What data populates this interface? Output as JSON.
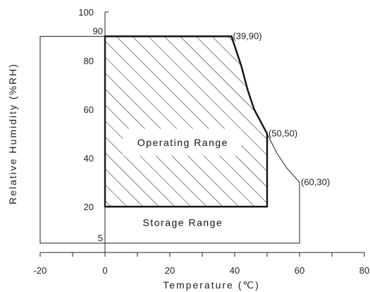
{
  "chart_data": {
    "type": "area",
    "xlabel": "Temperature (℃)",
    "ylabel": "Relative Humidity (%RH)",
    "xlim": [
      -20,
      80
    ],
    "ylim": [
      0,
      100
    ],
    "x_ticks": [
      -20,
      0,
      20,
      40,
      60,
      80
    ],
    "y_ticks": [
      20,
      40,
      60,
      80,
      100
    ],
    "y_extra_ticks": [
      5,
      90
    ],
    "grid": false,
    "legend": "none",
    "series": [
      {
        "name": "Operating Range",
        "fill": "hatched",
        "points": [
          [
            0,
            20
          ],
          [
            0,
            90
          ],
          [
            39,
            90
          ],
          [
            42,
            78
          ],
          [
            44,
            68
          ],
          [
            46,
            60
          ],
          [
            48,
            55
          ],
          [
            50,
            50
          ],
          [
            50,
            20
          ]
        ]
      },
      {
        "name": "Storage Range",
        "fill": "none",
        "points": [
          [
            -20,
            5
          ],
          [
            -20,
            90
          ],
          [
            0,
            90
          ],
          [
            39,
            90
          ],
          [
            42,
            78
          ],
          [
            44,
            68
          ],
          [
            46,
            60
          ],
          [
            48,
            55
          ],
          [
            50,
            50
          ],
          [
            53,
            42
          ],
          [
            56,
            36
          ],
          [
            60,
            30
          ],
          [
            60,
            5
          ]
        ]
      }
    ],
    "annotations": [
      {
        "label": "(39,90)",
        "x": 39,
        "y": 90
      },
      {
        "label": "(50,50)",
        "x": 50,
        "y": 50
      },
      {
        "label": "(60,30)",
        "x": 60,
        "y": 30
      }
    ],
    "region_labels": {
      "operating": "Operating Range",
      "storage": "Storage Range"
    }
  }
}
